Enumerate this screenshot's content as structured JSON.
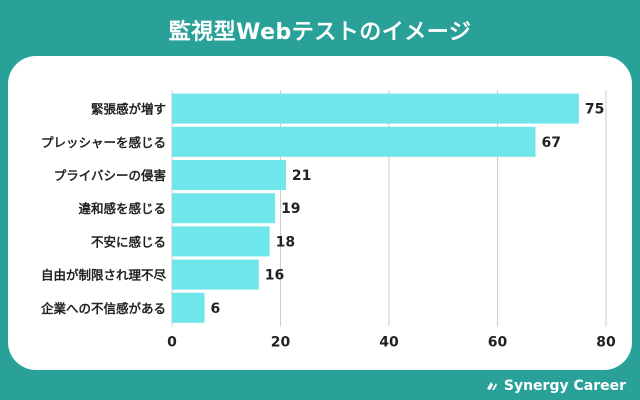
{
  "title": "監視型Webテストのイメージ",
  "brand": "Synergy Career",
  "colors": {
    "background": "#2aa198",
    "bar": "#6ee6ea",
    "grid": "#cccccc",
    "text": "#222222"
  },
  "chart_data": {
    "type": "bar",
    "orientation": "horizontal",
    "categories": [
      "緊張感が増す",
      "プレッシャーを感じる",
      "プライバシーの侵害",
      "違和感を感じる",
      "不安に感じる",
      "自由が制限され理不尽",
      "企業への不信感がある"
    ],
    "values": [
      75,
      67,
      21,
      19,
      18,
      16,
      6
    ],
    "xlim": [
      0,
      80
    ],
    "xticks": [
      0,
      20,
      40,
      60,
      80
    ],
    "grid": true,
    "legend": "none"
  }
}
